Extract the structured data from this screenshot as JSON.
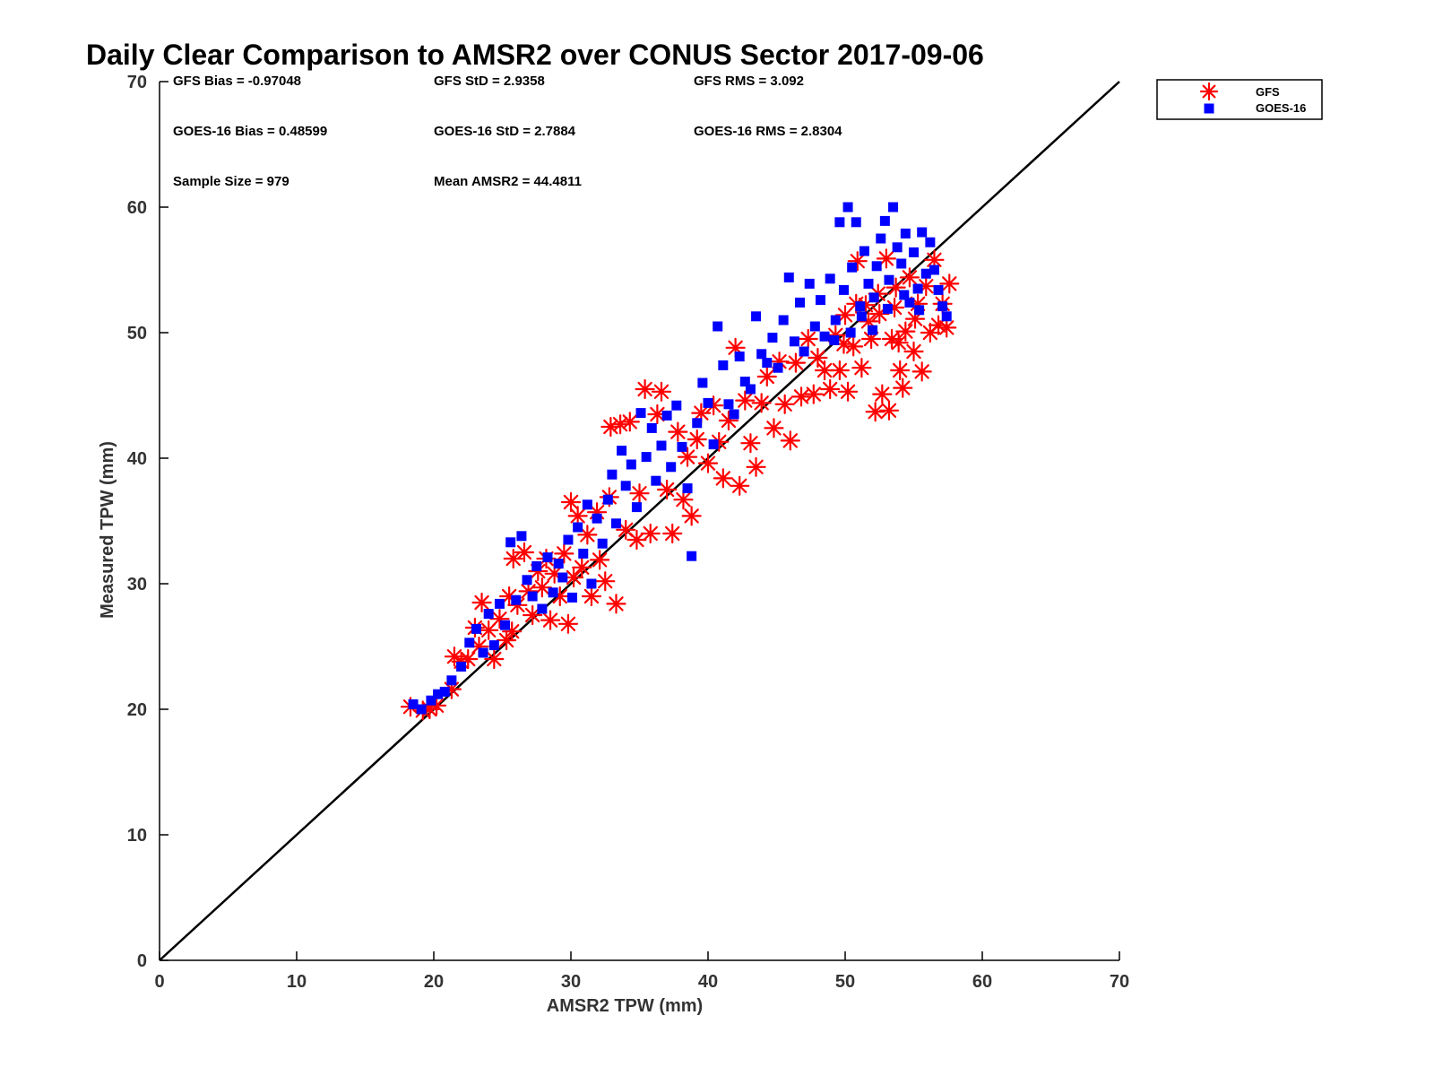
{
  "chart_data": {
    "type": "scatter",
    "title": "Daily Clear Comparison to AMSR2 over CONUS Sector 2017-09-06",
    "xlabel": "AMSR2 TPW (mm)",
    "ylabel": "Measured TPW (mm)",
    "xlim": [
      0,
      70
    ],
    "ylim": [
      0,
      70
    ],
    "xticks": [
      "0",
      "10",
      "20",
      "30",
      "40",
      "50",
      "60",
      "70"
    ],
    "yticks": [
      "0",
      "10",
      "20",
      "30",
      "40",
      "50",
      "60",
      "70"
    ],
    "grid": false,
    "legend_position": "top-right, outside plot",
    "reference_line": {
      "from": [
        0,
        0
      ],
      "to": [
        70,
        70
      ],
      "color": "#000000"
    },
    "stats": {
      "gfs_bias": "GFS Bias = -0.97048",
      "gfs_std": "GFS StD = 2.9358",
      "gfs_rms": "GFS RMS = 3.092",
      "goes_bias": "GOES-16 Bias = 0.48599",
      "goes_std": "GOES-16 StD = 2.7884",
      "goes_rms": "GOES-16 RMS = 2.8304",
      "sample_size": "Sample Size = 979",
      "mean_amsr2": "Mean AMSR2 = 44.4811"
    },
    "series": [
      {
        "name": "GFS",
        "marker": "asterisk",
        "color": "#ff0000",
        "points": [
          [
            18.3,
            20.2
          ],
          [
            19.2,
            19.9
          ],
          [
            19.7,
            20.0
          ],
          [
            20.2,
            20.3
          ],
          [
            21.3,
            21.6
          ],
          [
            21.5,
            24.2
          ],
          [
            22.0,
            23.8
          ],
          [
            22.5,
            24.0
          ],
          [
            23.0,
            26.5
          ],
          [
            23.3,
            25.0
          ],
          [
            23.5,
            28.5
          ],
          [
            24.0,
            26.3
          ],
          [
            24.4,
            24.0
          ],
          [
            24.8,
            27.2
          ],
          [
            25.3,
            25.5
          ],
          [
            25.5,
            29.0
          ],
          [
            25.7,
            26.2
          ],
          [
            25.8,
            32.0
          ],
          [
            26.1,
            28.3
          ],
          [
            26.6,
            32.5
          ],
          [
            26.9,
            29.4
          ],
          [
            27.2,
            27.5
          ],
          [
            27.6,
            31.0
          ],
          [
            27.9,
            29.7
          ],
          [
            28.2,
            32.0
          ],
          [
            28.5,
            27.1
          ],
          [
            28.8,
            30.8
          ],
          [
            29.2,
            29.0
          ],
          [
            29.5,
            32.4
          ],
          [
            29.8,
            26.8
          ],
          [
            30.0,
            36.5
          ],
          [
            30.2,
            30.5
          ],
          [
            30.5,
            35.4
          ],
          [
            30.8,
            31.3
          ],
          [
            31.2,
            33.9
          ],
          [
            31.5,
            29.0
          ],
          [
            31.9,
            35.7
          ],
          [
            32.1,
            31.9
          ],
          [
            32.5,
            30.2
          ],
          [
            32.8,
            36.9
          ],
          [
            32.9,
            42.5
          ],
          [
            33.3,
            28.4
          ],
          [
            33.6,
            42.7
          ],
          [
            34.0,
            34.3
          ],
          [
            34.3,
            42.9
          ],
          [
            34.8,
            33.5
          ],
          [
            35.0,
            37.2
          ],
          [
            35.4,
            45.5
          ],
          [
            35.8,
            34.0
          ],
          [
            36.3,
            43.5
          ],
          [
            36.6,
            45.3
          ],
          [
            37.0,
            37.5
          ],
          [
            37.4,
            34.0
          ],
          [
            37.8,
            42.1
          ],
          [
            38.2,
            36.7
          ],
          [
            38.5,
            40.1
          ],
          [
            38.8,
            35.4
          ],
          [
            39.2,
            41.5
          ],
          [
            39.5,
            43.6
          ],
          [
            40.0,
            39.6
          ],
          [
            40.4,
            44.2
          ],
          [
            40.8,
            41.3
          ],
          [
            41.1,
            38.4
          ],
          [
            41.5,
            43.0
          ],
          [
            42.0,
            48.8
          ],
          [
            42.3,
            37.8
          ],
          [
            42.7,
            44.6
          ],
          [
            43.1,
            41.2
          ],
          [
            43.5,
            39.3
          ],
          [
            43.9,
            44.4
          ],
          [
            44.3,
            46.5
          ],
          [
            44.8,
            42.4
          ],
          [
            45.2,
            47.7
          ],
          [
            45.6,
            44.3
          ],
          [
            46.0,
            41.4
          ],
          [
            46.4,
            47.6
          ],
          [
            46.8,
            44.9
          ],
          [
            47.3,
            49.5
          ],
          [
            47.7,
            45.1
          ],
          [
            48.0,
            48.0
          ],
          [
            48.5,
            47.0
          ],
          [
            48.9,
            45.5
          ],
          [
            49.3,
            49.8
          ],
          [
            49.6,
            47.0
          ],
          [
            50.0,
            51.4
          ],
          [
            50.2,
            45.3
          ],
          [
            50.6,
            48.9
          ],
          [
            50.9,
            55.7
          ],
          [
            51.2,
            47.2
          ],
          [
            51.5,
            52.2
          ],
          [
            51.9,
            49.5
          ],
          [
            52.2,
            43.7
          ],
          [
            52.5,
            51.5
          ],
          [
            52.7,
            45.1
          ],
          [
            53.0,
            55.9
          ],
          [
            53.2,
            43.8
          ],
          [
            53.4,
            49.5
          ],
          [
            53.7,
            53.6
          ],
          [
            54.0,
            47.0
          ],
          [
            54.2,
            45.6
          ],
          [
            54.4,
            50.1
          ],
          [
            54.7,
            54.4
          ],
          [
            55.0,
            48.5
          ],
          [
            55.3,
            52.3
          ],
          [
            55.6,
            46.9
          ],
          [
            55.9,
            53.7
          ],
          [
            56.2,
            50.0
          ],
          [
            56.5,
            55.8
          ],
          [
            56.8,
            50.6
          ],
          [
            57.1,
            52.3
          ],
          [
            57.4,
            50.4
          ],
          [
            57.6,
            53.9
          ],
          [
            53.6,
            52.0
          ],
          [
            52.4,
            53.1
          ],
          [
            51.7,
            50.9
          ],
          [
            50.8,
            52.3
          ],
          [
            49.9,
            49.1
          ],
          [
            53.9,
            49.2
          ],
          [
            55.1,
            51.1
          ]
        ]
      },
      {
        "name": "GOES-16",
        "marker": "square",
        "color": "#0000ff",
        "points": [
          [
            18.5,
            20.4
          ],
          [
            19.1,
            20.0
          ],
          [
            19.8,
            20.7
          ],
          [
            20.3,
            21.2
          ],
          [
            20.8,
            21.4
          ],
          [
            21.3,
            22.3
          ],
          [
            22.0,
            23.4
          ],
          [
            22.6,
            25.3
          ],
          [
            23.1,
            26.4
          ],
          [
            23.6,
            24.5
          ],
          [
            24.0,
            27.6
          ],
          [
            24.4,
            25.1
          ],
          [
            24.8,
            28.4
          ],
          [
            25.2,
            26.7
          ],
          [
            25.6,
            33.3
          ],
          [
            26.0,
            28.7
          ],
          [
            26.4,
            33.8
          ],
          [
            26.8,
            30.3
          ],
          [
            27.2,
            29.0
          ],
          [
            27.5,
            31.4
          ],
          [
            27.9,
            28.0
          ],
          [
            28.3,
            32.1
          ],
          [
            28.7,
            29.3
          ],
          [
            29.1,
            31.6
          ],
          [
            29.4,
            30.5
          ],
          [
            29.8,
            33.5
          ],
          [
            30.1,
            28.9
          ],
          [
            30.5,
            34.5
          ],
          [
            30.9,
            32.4
          ],
          [
            31.2,
            36.3
          ],
          [
            31.5,
            30.0
          ],
          [
            31.9,
            35.2
          ],
          [
            32.3,
            33.2
          ],
          [
            32.7,
            36.7
          ],
          [
            33.0,
            38.7
          ],
          [
            33.3,
            34.8
          ],
          [
            33.7,
            40.6
          ],
          [
            34.0,
            37.8
          ],
          [
            34.4,
            39.5
          ],
          [
            34.8,
            36.1
          ],
          [
            35.1,
            43.6
          ],
          [
            35.5,
            40.1
          ],
          [
            35.9,
            42.4
          ],
          [
            36.2,
            38.2
          ],
          [
            36.6,
            41.0
          ],
          [
            37.0,
            43.4
          ],
          [
            37.3,
            39.3
          ],
          [
            37.7,
            44.2
          ],
          [
            38.1,
            40.9
          ],
          [
            38.5,
            37.6
          ],
          [
            38.8,
            32.2
          ],
          [
            39.2,
            42.8
          ],
          [
            39.6,
            46.0
          ],
          [
            40.0,
            44.4
          ],
          [
            40.4,
            41.1
          ],
          [
            40.7,
            50.5
          ],
          [
            41.1,
            47.4
          ],
          [
            41.5,
            44.3
          ],
          [
            41.9,
            43.5
          ],
          [
            42.3,
            48.1
          ],
          [
            42.7,
            46.1
          ],
          [
            43.1,
            45.5
          ],
          [
            43.5,
            51.3
          ],
          [
            43.9,
            48.3
          ],
          [
            44.3,
            47.6
          ],
          [
            44.7,
            49.6
          ],
          [
            45.1,
            47.2
          ],
          [
            45.5,
            51.0
          ],
          [
            45.9,
            54.4
          ],
          [
            46.3,
            49.3
          ],
          [
            46.7,
            52.4
          ],
          [
            47.0,
            48.5
          ],
          [
            47.4,
            53.9
          ],
          [
            47.8,
            50.5
          ],
          [
            48.2,
            52.6
          ],
          [
            48.5,
            49.7
          ],
          [
            48.9,
            54.3
          ],
          [
            49.3,
            51.0
          ],
          [
            49.6,
            58.8
          ],
          [
            49.9,
            53.4
          ],
          [
            50.2,
            60.0
          ],
          [
            50.5,
            55.2
          ],
          [
            50.8,
            58.8
          ],
          [
            51.1,
            52.1
          ],
          [
            51.4,
            56.5
          ],
          [
            51.7,
            53.9
          ],
          [
            52.0,
            50.2
          ],
          [
            52.3,
            55.3
          ],
          [
            52.6,
            57.5
          ],
          [
            52.9,
            58.9
          ],
          [
            53.2,
            54.2
          ],
          [
            53.5,
            60.0
          ],
          [
            53.8,
            56.8
          ],
          [
            54.1,
            55.5
          ],
          [
            54.4,
            57.9
          ],
          [
            54.7,
            52.4
          ],
          [
            55.0,
            56.4
          ],
          [
            55.3,
            53.5
          ],
          [
            55.6,
            58.0
          ],
          [
            55.9,
            54.7
          ],
          [
            56.2,
            57.2
          ],
          [
            56.5,
            55.0
          ],
          [
            56.8,
            53.4
          ],
          [
            57.1,
            52.1
          ],
          [
            57.4,
            51.3
          ],
          [
            52.1,
            52.8
          ],
          [
            51.2,
            51.3
          ],
          [
            50.4,
            50.0
          ],
          [
            53.1,
            51.9
          ],
          [
            54.3,
            53.0
          ],
          [
            55.4,
            51.8
          ],
          [
            49.2,
            49.4
          ]
        ]
      }
    ]
  }
}
